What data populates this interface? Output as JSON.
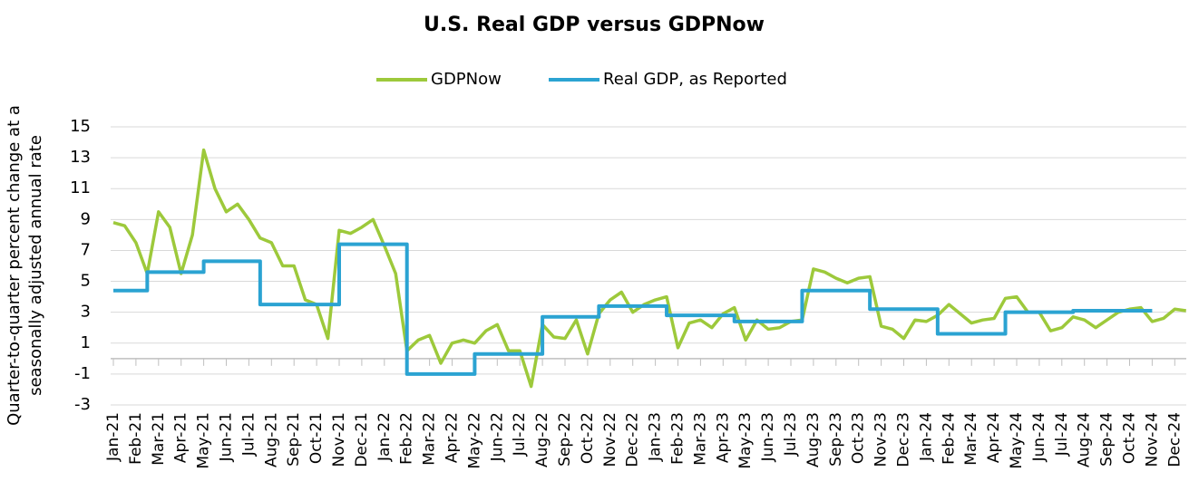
{
  "chart_data": {
    "type": "line",
    "title": "U.S. Real GDP versus GDPNow",
    "ylabel": [
      "Quarter-to-quarter percent change at a",
      "seasonally adjusted annual rate"
    ],
    "categories": [
      "Jan-21",
      null,
      "Feb-21",
      null,
      "Mar-21",
      null,
      "Apr-21",
      null,
      "May-21",
      null,
      "Jun-21",
      null,
      "Jul-21",
      null,
      "Aug-21",
      null,
      "Sep-21",
      null,
      "Oct-21",
      null,
      "Nov-21",
      null,
      "Dec-21",
      null,
      "Jan-22",
      null,
      "Feb-22",
      null,
      "Mar-22",
      null,
      "Apr-22",
      null,
      "May-22",
      null,
      "Jun-22",
      null,
      "Jul-22",
      null,
      "Aug-22",
      null,
      "Sep-22",
      null,
      "Oct-22",
      null,
      "Nov-22",
      null,
      "Dec-22",
      null,
      "Jan-23",
      null,
      "Feb-23",
      null,
      "Mar-23",
      null,
      "Apr-23",
      null,
      "May-23",
      null,
      "Jun-23",
      null,
      "Jul-23",
      null,
      "Aug-23",
      null,
      "Sep-23",
      null,
      "Oct-23",
      null,
      "Nov-23",
      null,
      "Dec-23",
      null,
      "Jan-24",
      null,
      "Feb-24",
      null,
      "Mar-24",
      null,
      "Apr-24",
      null,
      "May-24",
      null,
      "Jun-24",
      null,
      "Jul-24",
      null,
      "Aug-24",
      null,
      "Sep-24",
      null,
      "Oct-24",
      null,
      "Nov-24",
      null,
      "Dec-24",
      null
    ],
    "series": [
      {
        "name": "GDPNow",
        "color": "#9dc93b",
        "step": false,
        "values": [
          8.8,
          8.6,
          7.5,
          5.5,
          9.5,
          8.5,
          5.5,
          8.0,
          13.5,
          11.0,
          9.5,
          10.0,
          9.0,
          7.8,
          7.5,
          6.0,
          6.0,
          3.8,
          3.5,
          1.3,
          8.3,
          8.1,
          8.5,
          9.0,
          7.3,
          5.5,
          0.5,
          1.2,
          1.5,
          -0.3,
          1.0,
          1.2,
          1.0,
          1.8,
          2.2,
          0.5,
          0.5,
          -1.8,
          2.2,
          1.4,
          1.3,
          2.5,
          0.3,
          2.9,
          3.8,
          4.3,
          3.0,
          3.5,
          3.8,
          4.0,
          0.7,
          2.3,
          2.5,
          2.0,
          2.9,
          3.3,
          1.2,
          2.5,
          1.9,
          2.0,
          2.4,
          2.5,
          5.8,
          5.6,
          5.2,
          4.9,
          5.2,
          5.3,
          2.1,
          1.9,
          1.3,
          2.5,
          2.4,
          2.8,
          3.5,
          2.9,
          2.3,
          2.5,
          2.6,
          3.9,
          4.0,
          3.0,
          3.0,
          1.8,
          2.0,
          2.7,
          2.5,
          2.0,
          2.5,
          3.0,
          3.2,
          3.3,
          2.4,
          2.6,
          3.2,
          3.1
        ]
      },
      {
        "name": "Real GDP, as Reported",
        "color": "#2ba3d2",
        "step": true,
        "values": [
          4.4,
          4.4,
          4.4,
          5.6,
          5.6,
          5.6,
          5.6,
          5.6,
          6.3,
          6.3,
          6.3,
          6.3,
          6.3,
          3.5,
          3.5,
          3.5,
          3.5,
          3.5,
          3.5,
          3.5,
          7.4,
          7.4,
          7.4,
          7.4,
          7.4,
          7.4,
          -1.0,
          -1.0,
          -1.0,
          -1.0,
          -1.0,
          -1.0,
          0.3,
          0.3,
          0.3,
          0.3,
          0.3,
          0.3,
          2.7,
          2.7,
          2.7,
          2.7,
          2.7,
          3.4,
          3.4,
          3.4,
          3.4,
          3.4,
          3.4,
          2.8,
          2.8,
          2.8,
          2.8,
          2.8,
          2.8,
          2.4,
          2.4,
          2.4,
          2.4,
          2.4,
          2.4,
          4.4,
          4.4,
          4.4,
          4.4,
          4.4,
          4.4,
          3.2,
          3.2,
          3.2,
          3.2,
          3.2,
          3.2,
          1.6,
          1.6,
          1.6,
          1.6,
          1.6,
          1.6,
          3.0,
          3.0,
          3.0,
          3.0,
          3.0,
          3.0,
          3.1,
          3.1,
          3.1,
          3.1,
          3.1,
          3.1,
          3.1,
          null,
          null,
          null,
          null
        ]
      }
    ],
    "ylim": [
      -3,
      15
    ],
    "yticks": [
      -3,
      -1,
      1,
      3,
      5,
      7,
      9,
      11,
      13,
      15
    ],
    "grid": true,
    "legend": "top"
  }
}
